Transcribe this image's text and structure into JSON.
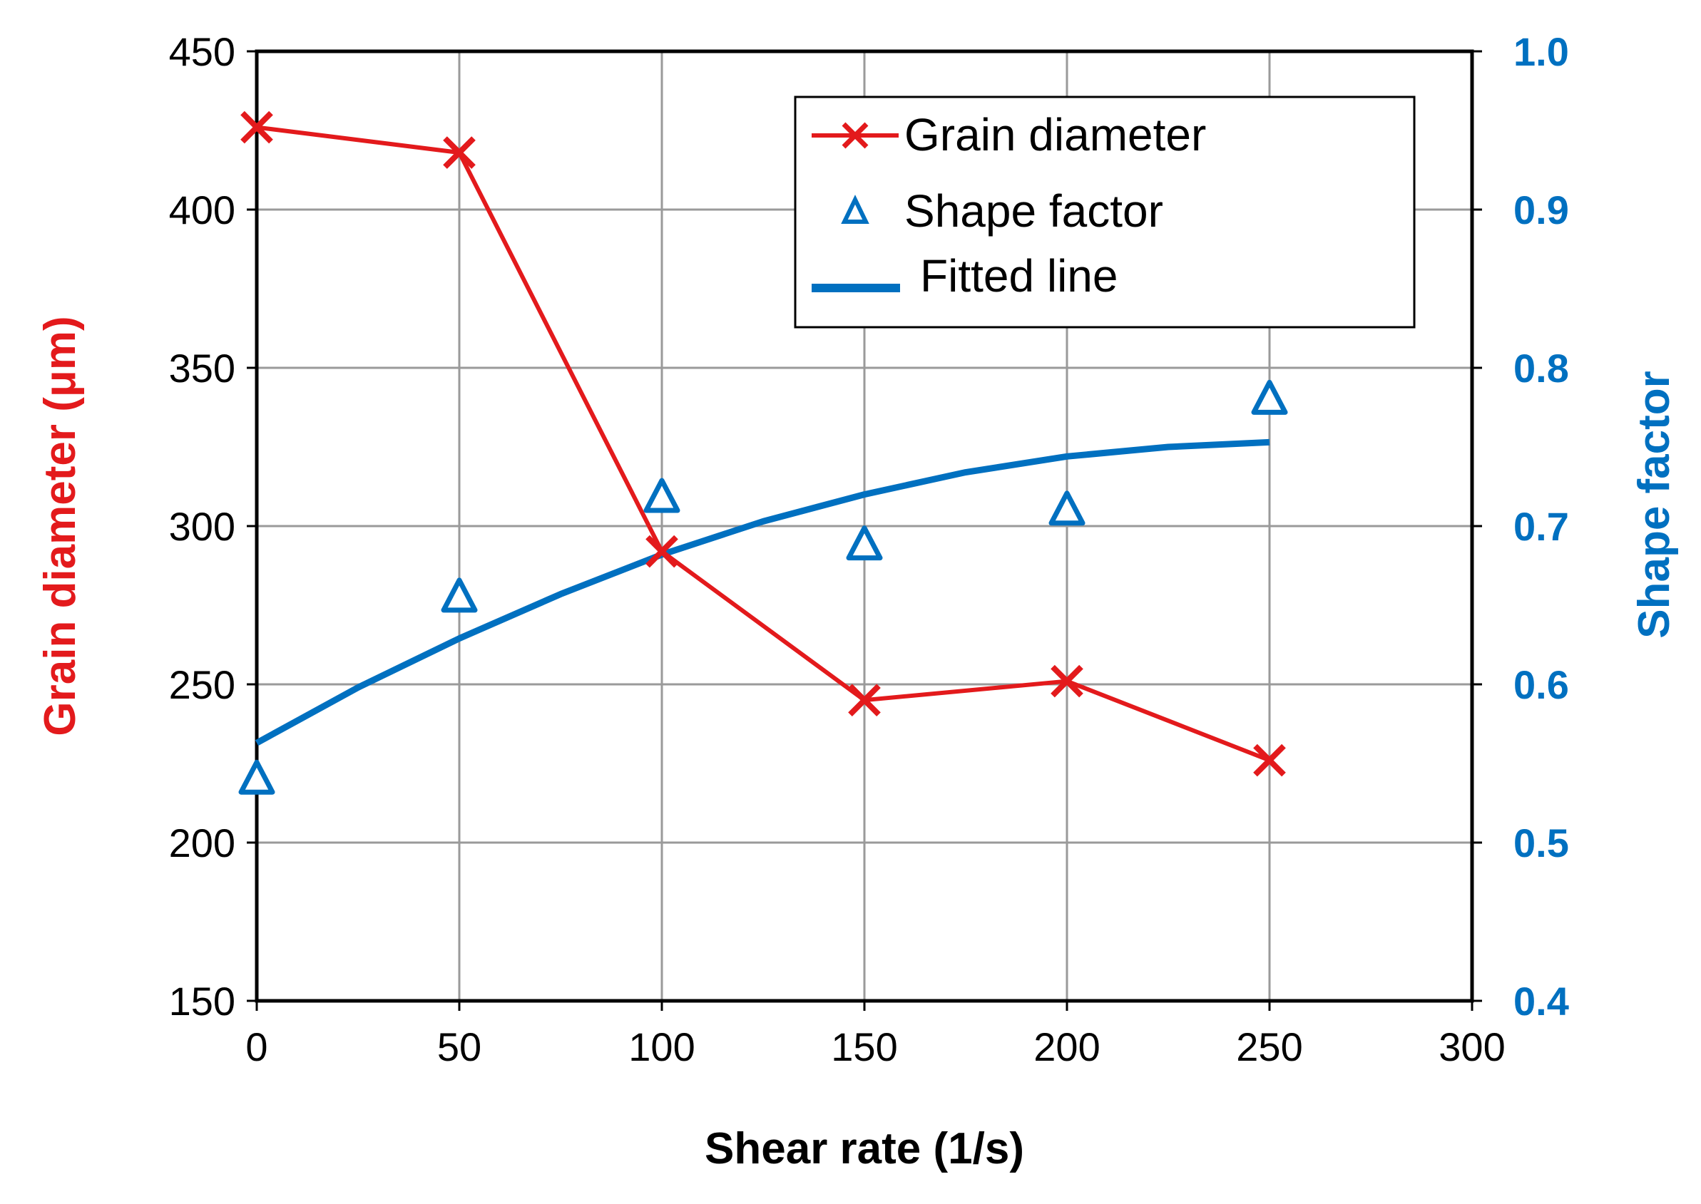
{
  "chart_data": {
    "type": "line",
    "title": "",
    "xlabel": "Shear rate (1/s)",
    "ylabel_left": "Grain diameter (μm)",
    "ylabel_right": "Shape factor",
    "xlim": [
      0,
      300
    ],
    "ylim_left": [
      150,
      450
    ],
    "ylim_right": [
      0.4,
      1.0
    ],
    "x_ticks": [
      "0",
      "50",
      "100",
      "150",
      "200",
      "250",
      "300"
    ],
    "y_left_ticks": [
      "150",
      "200",
      "250",
      "300",
      "350",
      "400",
      "450"
    ],
    "y_right_ticks": [
      "0.4",
      "0.5",
      "0.6",
      "0.7",
      "0.8",
      "0.9",
      "1.0"
    ],
    "grid": true,
    "legend_position": "top-right",
    "series": [
      {
        "name": "Grain diameter",
        "axis": "left",
        "style": "line-with-x-markers",
        "color": "#e31a1c",
        "x": [
          0,
          50,
          100,
          150,
          200,
          250
        ],
        "values": [
          426,
          418,
          292,
          245,
          251,
          226
        ]
      },
      {
        "name": "Shape factor",
        "axis": "right",
        "style": "triangle-markers",
        "color": "#0070c0",
        "x": [
          0,
          50,
          100,
          150,
          200,
          250
        ],
        "values": [
          0.54,
          0.655,
          0.718,
          0.688,
          0.71,
          0.78
        ]
      },
      {
        "name": "Fitted line",
        "axis": "right",
        "style": "line",
        "color": "#0070c0",
        "x": [
          0,
          25,
          50,
          75,
          100,
          125,
          150,
          175,
          200,
          225,
          250
        ],
        "values": [
          0.563,
          0.598,
          0.629,
          0.657,
          0.682,
          0.703,
          0.72,
          0.734,
          0.744,
          0.75,
          0.753
        ]
      }
    ]
  }
}
